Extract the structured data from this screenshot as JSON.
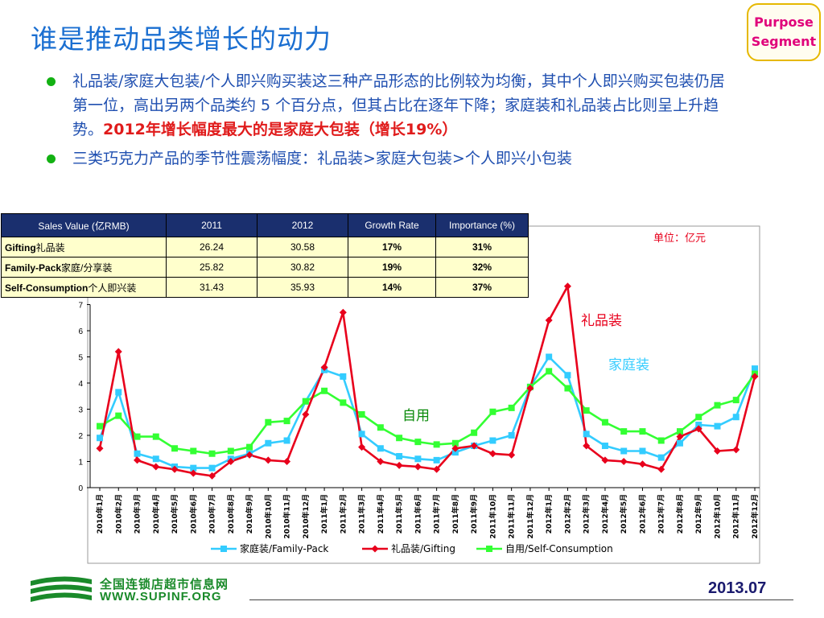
{
  "page": {
    "title": "谁是推动品类增长的动力",
    "badge": [
      "Purpose",
      "Segment"
    ],
    "bullet1": {
      "text": "礼品装/家庭大包装/个人即兴购买装这三种产品形态的比例较为均衡，其中个人即兴购买包装仍居第一位，高出另两个品类约 5 个百分点，但其占比在逐年下降；家庭装和礼品装占比则呈上升趋势。",
      "highlight": "2012年增长幅度最大的是家庭大包装（增长19%）"
    },
    "bullet2": "三类巧克力产品的季节性震荡幅度：礼品装>家庭大包装>个人即兴小包装",
    "footer": {
      "logo_cn": "全国连锁店超市信息网",
      "logo_en": "WWW.SUPINF.ORG",
      "date": "2013.07"
    }
  },
  "table": {
    "headers": [
      "Sales Value (亿RMB)",
      "2011",
      "2012",
      "Growth Rate",
      "Importance (%)"
    ],
    "rows": [
      {
        "en": "Gifting",
        "cn": "礼品装",
        "v2011": "26.24",
        "v2012": "30.58",
        "growth": "17%",
        "importance": "31%"
      },
      {
        "en": "Family-Pack",
        "cn": "家庭/分享装",
        "v2011": "25.82",
        "v2012": "30.82",
        "growth": "19%",
        "importance": "32%"
      },
      {
        "en": "Self-Consumption",
        "cn": "个人即兴装",
        "v2011": "31.43",
        "v2012": "35.93",
        "growth": "14%",
        "importance": "37%"
      }
    ]
  },
  "chart_data": {
    "type": "line",
    "unit_label": "单位：亿元",
    "x": [
      "2010年1月",
      "2010年2月",
      "2010年3月",
      "2010年4月",
      "2010年5月",
      "2010年6月",
      "2010年7月",
      "2010年8月",
      "2010年9月",
      "2010年10月",
      "2010年11月",
      "2010年12月",
      "2011年1月",
      "2011年2月",
      "2011年3月",
      "2011年4月",
      "2011年5月",
      "2011年6月",
      "2011年7月",
      "2011年8月",
      "2011年9月",
      "2011年10月",
      "2011年11月",
      "2011年12月",
      "2012年1月",
      "2012年2月",
      "2012年3月",
      "2012年4月",
      "2012年5月",
      "2012年6月",
      "2012年7月",
      "2012年8月",
      "2012年9月",
      "2012年10月",
      "2012年11月",
      "2012年12月"
    ],
    "yticks": [
      0,
      1,
      2,
      3,
      4,
      5,
      6,
      7
    ],
    "ylim": [
      0,
      7
    ],
    "series": [
      {
        "name": "家庭装/Family-Pack",
        "color": "#33ccff",
        "marker": "square",
        "values": [
          1.9,
          3.65,
          1.3,
          1.1,
          0.8,
          0.75,
          0.75,
          1.1,
          1.3,
          1.7,
          1.8,
          3.3,
          4.5,
          4.25,
          2.05,
          1.5,
          1.2,
          1.1,
          1.05,
          1.35,
          1.6,
          1.8,
          2.0,
          3.85,
          5.0,
          4.3,
          2.05,
          1.6,
          1.4,
          1.4,
          1.15,
          1.7,
          2.4,
          2.35,
          2.7,
          4.55
        ]
      },
      {
        "name": "礼品装/Gifting",
        "color": "#e8001c",
        "marker": "diamond",
        "values": [
          1.5,
          5.2,
          1.05,
          0.8,
          0.7,
          0.55,
          0.45,
          1.0,
          1.25,
          1.05,
          1.0,
          2.8,
          4.6,
          6.7,
          1.55,
          1.0,
          0.85,
          0.8,
          0.7,
          1.5,
          1.6,
          1.3,
          1.25,
          3.8,
          6.4,
          7.7,
          1.6,
          1.05,
          1.0,
          0.9,
          0.7,
          1.95,
          2.25,
          1.4,
          1.45,
          4.25
        ]
      },
      {
        "name": "自用/Self-Consumption",
        "color": "#33ff33",
        "marker": "square",
        "values": [
          2.35,
          2.75,
          1.95,
          1.95,
          1.5,
          1.4,
          1.3,
          1.4,
          1.55,
          2.5,
          2.55,
          3.3,
          3.7,
          3.25,
          2.8,
          2.3,
          1.9,
          1.75,
          1.65,
          1.7,
          2.1,
          2.9,
          3.05,
          3.85,
          4.45,
          3.8,
          2.95,
          2.5,
          2.15,
          2.15,
          1.8,
          2.15,
          2.7,
          3.15,
          3.35,
          4.35
        ]
      }
    ],
    "annotations": [
      {
        "text": "礼品装",
        "color": "#e8001c"
      },
      {
        "text": "家庭装",
        "color": "#33ccff"
      },
      {
        "text": "自用",
        "color": "#0a8a0a"
      }
    ]
  }
}
